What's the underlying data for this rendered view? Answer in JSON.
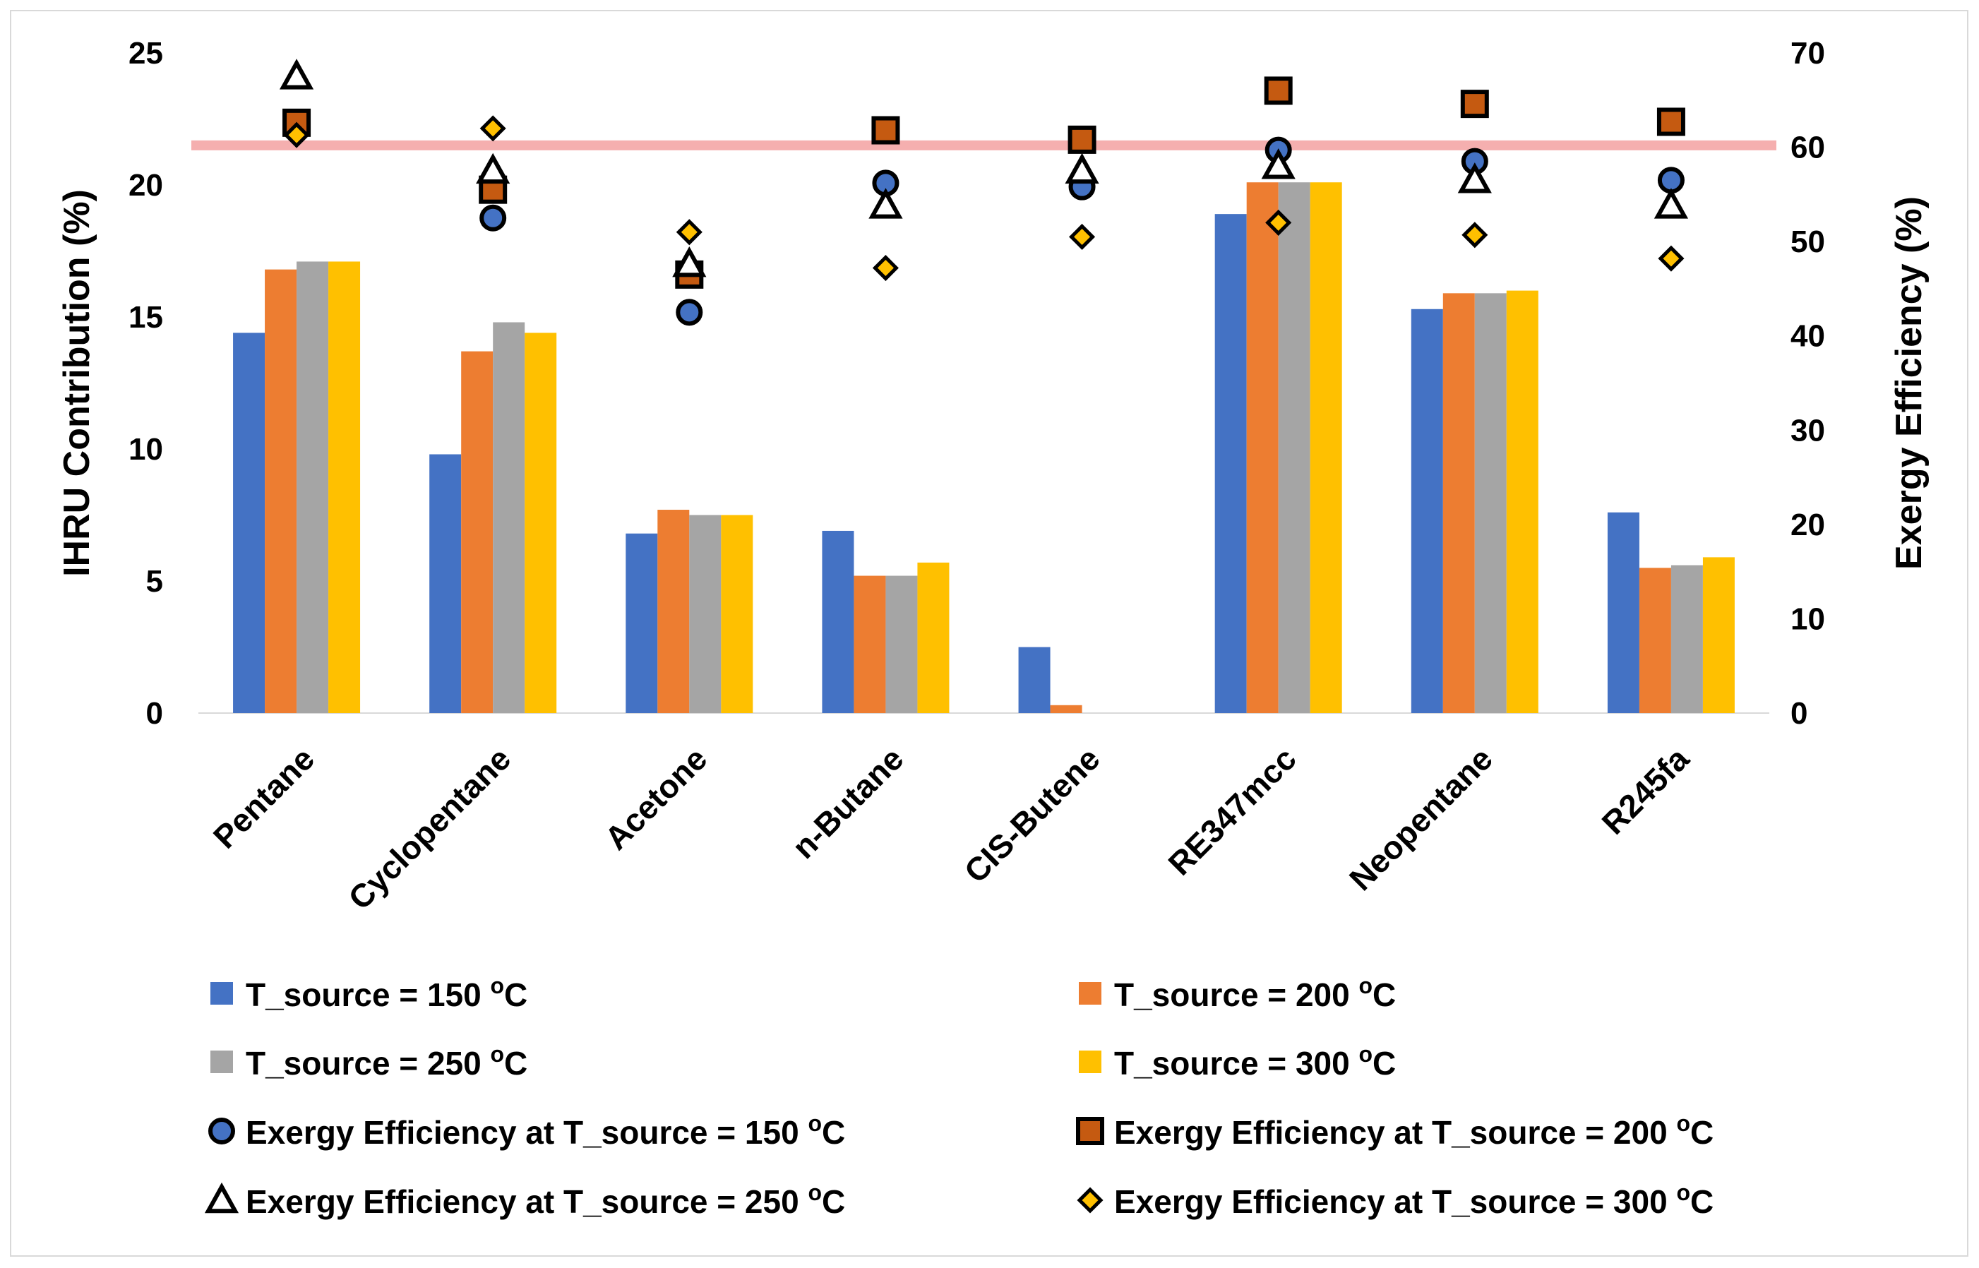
{
  "chart_data": {
    "type": "bar",
    "title": "",
    "xlabel": "",
    "ylabel": "IHRU Contribution (%)",
    "y2label": "Exergy Efficiency (%)",
    "ylim": [
      0,
      25
    ],
    "y2lim": [
      0,
      70
    ],
    "yticks": [
      "0",
      "5",
      "10",
      "15",
      "20",
      "25"
    ],
    "y2ticks": [
      "0",
      "10",
      "20",
      "30",
      "40",
      "50",
      "60",
      "70"
    ],
    "categories": [
      "Pentane",
      "Cyclopentane",
      "Acetone",
      "n-Butane",
      "CIS-Butene",
      "RE347mcc",
      "Neopentane",
      "R245fa"
    ],
    "series": [
      {
        "name": "T_source = 150",
        "unit": "C",
        "color": "#4472c4",
        "kind": "bar",
        "axis": "left",
        "values": [
          14.4,
          9.8,
          6.8,
          6.9,
          2.5,
          18.9,
          15.3,
          7.6
        ]
      },
      {
        "name": "T_source = 200",
        "unit": "C",
        "color": "#ed7d31",
        "kind": "bar",
        "axis": "left",
        "values": [
          16.8,
          13.7,
          7.7,
          5.2,
          0.3,
          20.1,
          15.9,
          5.5
        ]
      },
      {
        "name": "T_source = 250",
        "unit": "C",
        "color": "#a5a5a5",
        "kind": "bar",
        "axis": "left",
        "values": [
          17.1,
          14.8,
          7.5,
          5.2,
          0,
          20.1,
          15.9,
          5.6
        ]
      },
      {
        "name": "T_source = 300",
        "unit": "C",
        "color": "#ffc000",
        "kind": "bar",
        "axis": "left",
        "values": [
          17.1,
          14.4,
          7.5,
          5.7,
          0,
          20.1,
          16.0,
          5.9
        ]
      },
      {
        "name": "Exergy Efficiency at T_source = 150",
        "unit": "C",
        "color": "#4472c4",
        "kind": "circle",
        "axis": "right",
        "values": [
          null,
          52.5,
          42.5,
          56.2,
          55.8,
          59.7,
          58.5,
          56.5
        ]
      },
      {
        "name": "Exergy Efficiency at T_source = 200",
        "unit": "C",
        "color": "#c55a11",
        "kind": "square",
        "axis": "right",
        "values": [
          62.6,
          55.5,
          46.5,
          61.8,
          60.8,
          66.0,
          64.6,
          62.7
        ]
      },
      {
        "name": "Exergy Efficiency at T_source = 250",
        "unit": "C",
        "color": "#ffffff",
        "kind": "triangle",
        "axis": "right",
        "values": [
          67.5,
          57.5,
          47.6,
          53.8,
          57.5,
          58.0,
          56.5,
          53.8
        ]
      },
      {
        "name": "Exergy Efficiency at T_source = 300",
        "unit": "C",
        "color": "#ffc000",
        "kind": "diamond",
        "axis": "right",
        "values": [
          61.3,
          62.0,
          51.0,
          47.2,
          50.5,
          52.0,
          50.7,
          48.2
        ]
      }
    ],
    "reference_line": {
      "axis": "right",
      "value": 60.2,
      "color": "#f4a6a6"
    },
    "legend_position": "bottom",
    "grid": false
  }
}
